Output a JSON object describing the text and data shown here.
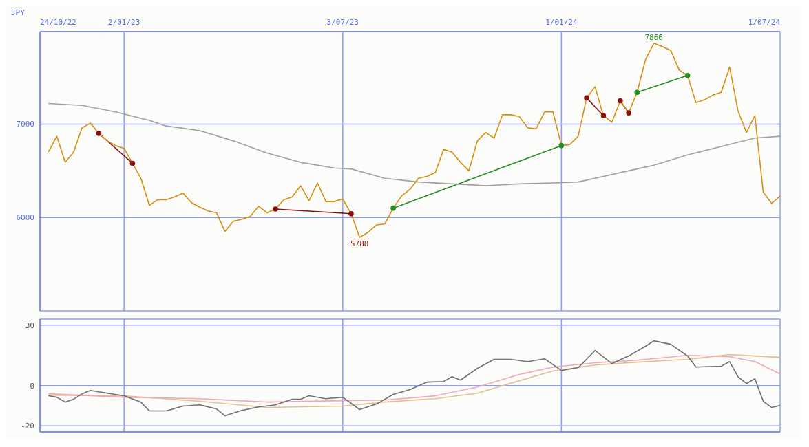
{
  "chart_data": [
    {
      "type": "line",
      "ylabel": "JPY",
      "xlim": [
        "2022-10-24",
        "2024-07-01"
      ],
      "ylim": [
        5000,
        7990
      ],
      "yticks": [
        6000,
        7000
      ],
      "grid": true,
      "xticks": [
        {
          "value": "2022-10-24",
          "label": "24/10/22"
        },
        {
          "value": "2023-01-02",
          "label": "2/01/23"
        },
        {
          "value": "2023-07-03",
          "label": "3/07/23"
        },
        {
          "value": "2024-01-01",
          "label": "1/01/24"
        },
        {
          "value": "2024-07-01",
          "label": "1/07/24"
        }
      ],
      "annotations": [
        {
          "text": "7866",
          "x": "2024-03-18",
          "y": 7866
        },
        {
          "text": "5788",
          "x": "2023-07-17",
          "y": 5788
        }
      ],
      "series": [
        {
          "color": "#a0a0a0",
          "x": [
            "2022-10-31",
            "2022-11-28",
            "2022-12-26",
            "2023-01-23",
            "2023-02-06",
            "2023-03-06",
            "2023-04-03",
            "2023-05-01",
            "2023-05-29",
            "2023-06-26",
            "2023-07-10",
            "2023-08-07",
            "2023-09-04",
            "2023-10-02",
            "2023-10-30",
            "2023-11-27",
            "2023-12-25",
            "2024-01-15",
            "2024-02-05",
            "2024-03-04",
            "2024-03-18",
            "2024-04-15",
            "2024-05-13",
            "2024-06-10",
            "2024-07-01"
          ],
          "values": [
            7220,
            7200,
            7130,
            7040,
            6980,
            6930,
            6820,
            6690,
            6590,
            6530,
            6520,
            6420,
            6380,
            6360,
            6340,
            6360,
            6370,
            6380,
            6440,
            6520,
            6560,
            6670,
            6760,
            6850,
            6870
          ]
        },
        {
          "color": "#d88c10",
          "x": [
            "2022-10-31",
            "2022-11-07",
            "2022-11-14",
            "2022-11-21",
            "2022-11-28",
            "2022-12-05",
            "2022-12-12",
            "2022-12-19",
            "2022-12-26",
            "2023-01-02",
            "2023-01-09",
            "2023-01-16",
            "2023-01-23",
            "2023-01-30",
            "2023-02-06",
            "2023-02-13",
            "2023-02-20",
            "2023-02-27",
            "2023-03-06",
            "2023-03-13",
            "2023-03-20",
            "2023-03-27",
            "2023-04-03",
            "2023-04-10",
            "2023-04-17",
            "2023-04-24",
            "2023-05-01",
            "2023-05-08",
            "2023-05-15",
            "2023-05-22",
            "2023-05-29",
            "2023-06-05",
            "2023-06-12",
            "2023-06-19",
            "2023-06-26",
            "2023-07-03",
            "2023-07-10",
            "2023-07-17",
            "2023-07-24",
            "2023-07-31",
            "2023-08-07",
            "2023-08-14",
            "2023-08-21",
            "2023-08-28",
            "2023-09-04",
            "2023-09-11",
            "2023-09-18",
            "2023-09-25",
            "2023-10-02",
            "2023-10-09",
            "2023-10-16",
            "2023-10-23",
            "2023-10-30",
            "2023-11-06",
            "2023-11-13",
            "2023-11-20",
            "2023-11-27",
            "2023-12-04",
            "2023-12-11",
            "2023-12-18",
            "2023-12-25",
            "2024-01-01",
            "2024-01-08",
            "2024-01-15",
            "2024-01-22",
            "2024-01-29",
            "2024-02-05",
            "2024-02-12",
            "2024-02-19",
            "2024-02-26",
            "2024-03-04",
            "2024-03-11",
            "2024-03-18",
            "2024-03-25",
            "2024-04-01",
            "2024-04-08",
            "2024-04-15",
            "2024-04-22",
            "2024-04-29",
            "2024-05-06",
            "2024-05-13",
            "2024-05-20",
            "2024-05-27",
            "2024-06-03",
            "2024-06-10",
            "2024-06-17",
            "2024-06-24",
            "2024-07-01"
          ],
          "values": [
            6700,
            6870,
            6590,
            6700,
            6960,
            7010,
            6900,
            6820,
            6770,
            6740,
            6580,
            6420,
            6130,
            6190,
            6190,
            6220,
            6260,
            6160,
            6110,
            6070,
            6050,
            5850,
            5960,
            5980,
            6010,
            6120,
            6050,
            6090,
            6190,
            6220,
            6340,
            6180,
            6370,
            6170,
            6170,
            6200,
            6040,
            5788,
            5840,
            5920,
            5930,
            6100,
            6230,
            6300,
            6420,
            6440,
            6480,
            6730,
            6700,
            6590,
            6500,
            6820,
            6910,
            6850,
            7100,
            7100,
            7080,
            6960,
            6950,
            7130,
            7130,
            6770,
            6780,
            6870,
            7280,
            7400,
            7090,
            7020,
            7250,
            7120,
            7340,
            7690,
            7866,
            7830,
            7790,
            7580,
            7520,
            7230,
            7260,
            7310,
            7340,
            7610,
            7140,
            6910,
            7090,
            6270,
            6150,
            6230
          ]
        },
        {
          "color": "#8b1010",
          "marker": "circle",
          "x": [
            "2022-12-12",
            "2023-01-09"
          ],
          "values": [
            6900,
            6580
          ]
        },
        {
          "color": "#8b1010",
          "marker": "circle",
          "x": [
            "2023-05-08",
            "2023-07-10"
          ],
          "values": [
            6090,
            6040
          ]
        },
        {
          "color": "#1f8f1f",
          "marker": "circle",
          "x": [
            "2023-08-14",
            "2024-01-01"
          ],
          "values": [
            6100,
            6770
          ]
        },
        {
          "color": "#8b1010",
          "marker": "circle",
          "x": [
            "2024-01-22",
            "2024-02-05"
          ],
          "values": [
            7280,
            7090
          ]
        },
        {
          "color": "#8b1010",
          "marker": "circle",
          "x": [
            "2024-02-19",
            "2024-02-26"
          ],
          "values": [
            7250,
            7120
          ]
        },
        {
          "color": "#1f8f1f",
          "marker": "circle",
          "x": [
            "2024-03-04",
            "2024-04-15"
          ],
          "values": [
            7340,
            7520
          ]
        }
      ]
    },
    {
      "type": "line",
      "xlim": [
        "2022-10-24",
        "2024-07-01"
      ],
      "ylim": [
        -23,
        33
      ],
      "yticks": [
        -20,
        0,
        30
      ],
      "grid": true,
      "tick_labels": "y",
      "xticks": [
        {
          "value": "2023-01-02",
          "label": null
        },
        {
          "value": "2023-07-03",
          "label": null
        },
        {
          "value": "2024-01-01",
          "label": null
        }
      ],
      "series": [
        {
          "color": "#e0c090",
          "x": [
            "2022-10-31",
            "2023-01-02",
            "2023-03-06",
            "2023-05-01",
            "2023-07-03",
            "2023-08-07",
            "2023-09-18",
            "2023-10-23",
            "2023-11-27",
            "2023-12-25",
            "2024-01-29",
            "2024-03-04",
            "2024-04-15",
            "2024-05-20",
            "2024-06-10",
            "2024-07-01"
          ],
          "values": [
            -4.8,
            -5.1,
            -7.8,
            -10.9,
            -10.2,
            -8.2,
            -6.5,
            -3.8,
            2.4,
            7.2,
            10.2,
            11.6,
            13,
            15.4,
            14.7,
            14
          ]
        },
        {
          "color": "#f4a6b8",
          "x": [
            "2022-10-31",
            "2023-01-02",
            "2023-03-06",
            "2023-05-01",
            "2023-07-03",
            "2023-08-07",
            "2023-09-18",
            "2023-10-23",
            "2023-11-27",
            "2023-12-25",
            "2024-01-29",
            "2024-03-04",
            "2024-04-15",
            "2024-05-20",
            "2024-06-10",
            "2024-07-01"
          ],
          "values": [
            -4.1,
            -5.8,
            -6.5,
            -8.2,
            -7.5,
            -7.2,
            -5.1,
            -0.7,
            5.5,
            9.2,
            11.3,
            12.6,
            15,
            14.3,
            11.9,
            5.8
          ]
        },
        {
          "color": "#707070",
          "x": [
            "2022-10-31",
            "2022-11-07",
            "2022-11-14",
            "2022-11-21",
            "2022-11-28",
            "2022-12-05",
            "2022-12-19",
            "2023-01-02",
            "2023-01-16",
            "2023-01-23",
            "2023-02-06",
            "2023-02-20",
            "2023-03-06",
            "2023-03-20",
            "2023-03-27",
            "2023-04-10",
            "2023-04-24",
            "2023-05-08",
            "2023-05-22",
            "2023-05-29",
            "2023-06-05",
            "2023-06-19",
            "2023-07-03",
            "2023-07-17",
            "2023-07-31",
            "2023-08-14",
            "2023-08-28",
            "2023-09-11",
            "2023-09-25",
            "2023-10-02",
            "2023-10-09",
            "2023-10-23",
            "2023-11-06",
            "2023-11-20",
            "2023-12-04",
            "2023-12-18",
            "2024-01-01",
            "2024-01-15",
            "2024-01-29",
            "2024-02-12",
            "2024-02-26",
            "2024-03-11",
            "2024-03-18",
            "2024-04-01",
            "2024-04-15",
            "2024-04-22",
            "2024-05-13",
            "2024-05-20",
            "2024-05-27",
            "2024-06-03",
            "2024-06-10",
            "2024-06-17",
            "2024-06-24",
            "2024-07-01"
          ],
          "values": [
            -5.1,
            -5.8,
            -8.2,
            -6.8,
            -4.1,
            -2.4,
            -3.8,
            -5.1,
            -8.2,
            -12.6,
            -12.6,
            -10.2,
            -9.6,
            -11.6,
            -15,
            -12.3,
            -10.6,
            -9.6,
            -6.8,
            -6.8,
            -5.1,
            -6.5,
            -5.8,
            -11.9,
            -9.2,
            -4.4,
            -2,
            1.7,
            2,
            4.4,
            2.7,
            8.5,
            13,
            13,
            11.9,
            13.3,
            7.5,
            8.9,
            17.4,
            10.9,
            14.7,
            19.5,
            22.2,
            20.5,
            14.7,
            9.2,
            9.6,
            11.9,
            4.4,
            1,
            3.4,
            -7.8,
            -10.9,
            -9.9
          ]
        }
      ]
    }
  ]
}
